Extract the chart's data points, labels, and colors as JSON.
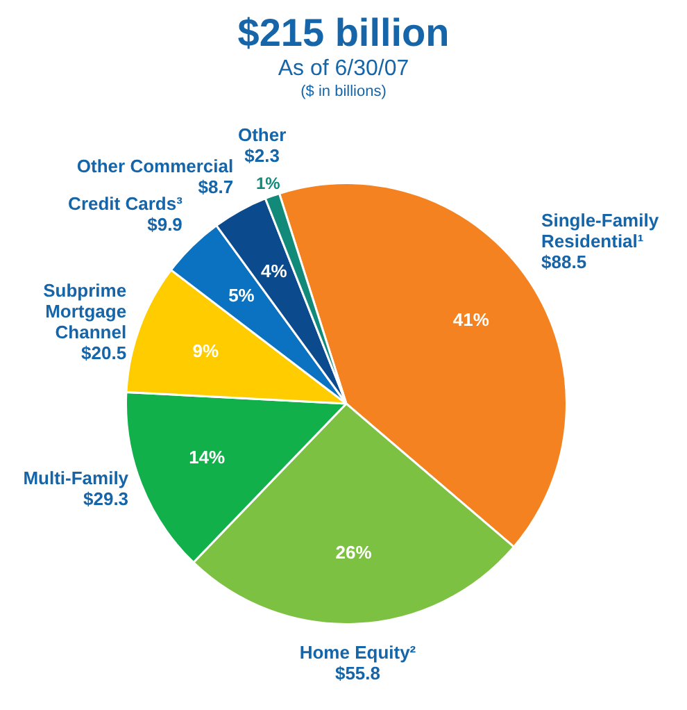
{
  "chart_data": {
    "type": "pie",
    "title": "$215 billion",
    "subtitle": "As of 6/30/07",
    "categories": [
      "Single-Family Residential¹",
      "Home Equity²",
      "Multi-Family",
      "Subprime Mortgage Channel",
      "Credit Cards³",
      "Other Commercial",
      "Other"
    ],
    "values": [
      88.5,
      55.8,
      29.3,
      20.5,
      9.9,
      8.7,
      2.3
    ],
    "value_labels": [
      "$88.5",
      "$55.8",
      "$29.3",
      "$20.5",
      "$9.9",
      "$8.7",
      "$2.3"
    ],
    "colors": [
      "#f58220",
      "#7dc142",
      "#12b04b",
      "#ffcc00",
      "#0a72c0",
      "#0b4a8c",
      "#118a7a"
    ],
    "annotations": [
      "($ in billions)",
      "41%",
      "26%",
      "14%",
      "9%",
      "5%",
      "4%",
      "1%"
    ],
    "legend": false
  }
}
